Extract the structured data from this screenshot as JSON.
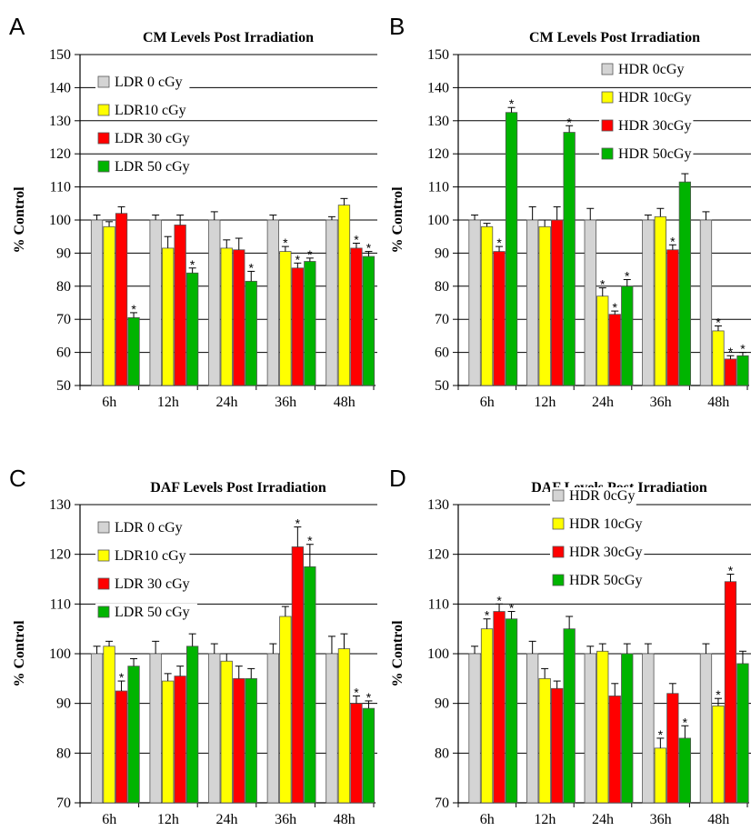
{
  "chart_data": [
    {
      "panel": "A",
      "type": "bar",
      "title": "CM Levels Post Irradiation",
      "ylabel": "% Control",
      "ylim": [
        50,
        150
      ],
      "yticks": [
        50,
        60,
        70,
        80,
        90,
        100,
        110,
        120,
        130,
        140,
        150
      ],
      "grid": true,
      "legend_position": "top-left",
      "categories": [
        "6h",
        "12h",
        "24h",
        "36h",
        "48h"
      ],
      "series": [
        {
          "name": "LDR 0 cGy",
          "color": "#d4d4d4",
          "values": [
            100,
            100,
            100,
            100,
            100
          ],
          "errors": [
            1.5,
            1.5,
            2.5,
            1.5,
            1.0
          ],
          "sig": [
            false,
            false,
            false,
            false,
            false
          ]
        },
        {
          "name": "LDR10 cGy",
          "color": "#ffff00",
          "values": [
            98,
            91.5,
            91.5,
            90.5,
            104.5
          ],
          "errors": [
            1.5,
            3.5,
            2.5,
            1.5,
            2.0
          ],
          "sig": [
            false,
            false,
            false,
            true,
            false
          ]
        },
        {
          "name": "LDR 30 cGy",
          "color": "#ff0000",
          "values": [
            102,
            98.5,
            91,
            85.5,
            91.5
          ],
          "errors": [
            2.0,
            3.0,
            3.5,
            1.5,
            1.5
          ],
          "sig": [
            false,
            false,
            false,
            true,
            true
          ]
        },
        {
          "name": "LDR 50 cGy",
          "color": "#00b400",
          "values": [
            70.5,
            84,
            81.5,
            87.5,
            89
          ],
          "errors": [
            1.5,
            1.5,
            3.0,
            1.0,
            1.5
          ],
          "sig": [
            true,
            true,
            true,
            true,
            true
          ]
        }
      ]
    },
    {
      "panel": "B",
      "type": "bar",
      "title": "CM Levels Post Irradiation",
      "ylabel": "% Control",
      "ylim": [
        50,
        150
      ],
      "yticks": [
        50,
        60,
        70,
        80,
        90,
        100,
        110,
        120,
        130,
        140,
        150
      ],
      "grid": true,
      "legend_position": "top-right",
      "categories": [
        "6h",
        "12h",
        "24h",
        "36h",
        "48h"
      ],
      "series": [
        {
          "name": "HDR 0cGy",
          "color": "#d4d4d4",
          "values": [
            100,
            100,
            100,
            100,
            100
          ],
          "errors": [
            1.5,
            4.0,
            3.5,
            1.5,
            2.5
          ],
          "sig": [
            false,
            false,
            false,
            false,
            false
          ]
        },
        {
          "name": "HDR 10cGy",
          "color": "#ffff00",
          "values": [
            98,
            98,
            77,
            101,
            66.5
          ],
          "errors": [
            1.0,
            2.0,
            2.5,
            2.5,
            1.5
          ],
          "sig": [
            false,
            false,
            true,
            false,
            true
          ]
        },
        {
          "name": "HDR 30cGy",
          "color": "#ff0000",
          "values": [
            90.5,
            100,
            71.5,
            91,
            58
          ],
          "errors": [
            1.5,
            4.0,
            1.0,
            1.5,
            1.0
          ],
          "sig": [
            true,
            false,
            true,
            true,
            true
          ]
        },
        {
          "name": "HDR 50cGy",
          "color": "#00b400",
          "values": [
            132.5,
            126.5,
            80,
            111.5,
            59
          ],
          "errors": [
            1.5,
            2.0,
            2.0,
            2.5,
            1.0
          ],
          "sig": [
            true,
            true,
            true,
            false,
            true
          ]
        }
      ]
    },
    {
      "panel": "C",
      "type": "bar",
      "title": "DAF Levels Post Irradiation",
      "ylabel": "% Control",
      "ylim": [
        70,
        130
      ],
      "yticks": [
        70,
        80,
        90,
        100,
        110,
        120,
        130
      ],
      "grid": true,
      "legend_position": "top-left",
      "categories": [
        "6h",
        "12h",
        "24h",
        "36h",
        "48h"
      ],
      "series": [
        {
          "name": "LDR 0 cGy",
          "color": "#d4d4d4",
          "values": [
            100,
            100,
            100,
            100,
            100
          ],
          "errors": [
            1.5,
            2.5,
            2.0,
            2.0,
            3.5
          ],
          "sig": [
            false,
            false,
            false,
            false,
            false
          ]
        },
        {
          "name": "LDR10 cGy",
          "color": "#ffff00",
          "values": [
            101.5,
            94.5,
            98.5,
            107.5,
            101
          ],
          "errors": [
            1.0,
            1.5,
            1.5,
            2.0,
            3.0
          ],
          "sig": [
            false,
            false,
            false,
            false,
            false
          ]
        },
        {
          "name": "LDR 30 cGy",
          "color": "#ff0000",
          "values": [
            92.5,
            95.5,
            95,
            121.5,
            90
          ],
          "errors": [
            2.0,
            2.0,
            2.5,
            4.0,
            1.5
          ],
          "sig": [
            true,
            false,
            false,
            true,
            true
          ]
        },
        {
          "name": "LDR 50 cGy",
          "color": "#00b400",
          "values": [
            97.5,
            101.5,
            95,
            117.5,
            89
          ],
          "errors": [
            1.5,
            2.5,
            2.0,
            4.5,
            1.5
          ],
          "sig": [
            false,
            false,
            false,
            true,
            true
          ]
        }
      ]
    },
    {
      "panel": "D",
      "type": "bar",
      "title": "DAF Levels Post Irradiation",
      "ylabel": "% Control",
      "ylim": [
        70,
        130
      ],
      "yticks": [
        70,
        80,
        90,
        100,
        110,
        120,
        130
      ],
      "grid": true,
      "legend_position": "top-right",
      "categories": [
        "6h",
        "12h",
        "24h",
        "36h",
        "48h"
      ],
      "series": [
        {
          "name": "HDR 0cGy",
          "color": "#d4d4d4",
          "values": [
            100,
            100,
            100,
            100,
            100
          ],
          "errors": [
            1.5,
            2.5,
            1.5,
            2.0,
            2.0
          ],
          "sig": [
            false,
            false,
            false,
            false,
            false
          ]
        },
        {
          "name": "HDR 10cGy",
          "color": "#ffff00",
          "values": [
            105,
            95,
            100.5,
            81,
            89.5
          ],
          "errors": [
            2.0,
            2.0,
            1.5,
            2.0,
            1.5
          ],
          "sig": [
            true,
            false,
            false,
            true,
            true
          ]
        },
        {
          "name": "HDR 30cGy",
          "color": "#ff0000",
          "values": [
            108.5,
            93,
            91.5,
            92,
            114.5
          ],
          "errors": [
            1.5,
            1.5,
            2.5,
            2.0,
            1.5
          ],
          "sig": [
            true,
            false,
            false,
            false,
            true
          ]
        },
        {
          "name": "HDR 50cGy",
          "color": "#00b400",
          "values": [
            107,
            105,
            100,
            83,
            98
          ],
          "errors": [
            1.5,
            2.5,
            2.0,
            2.5,
            2.5
          ],
          "sig": [
            true,
            false,
            false,
            true,
            false
          ]
        }
      ]
    }
  ],
  "significance_marker": "*"
}
